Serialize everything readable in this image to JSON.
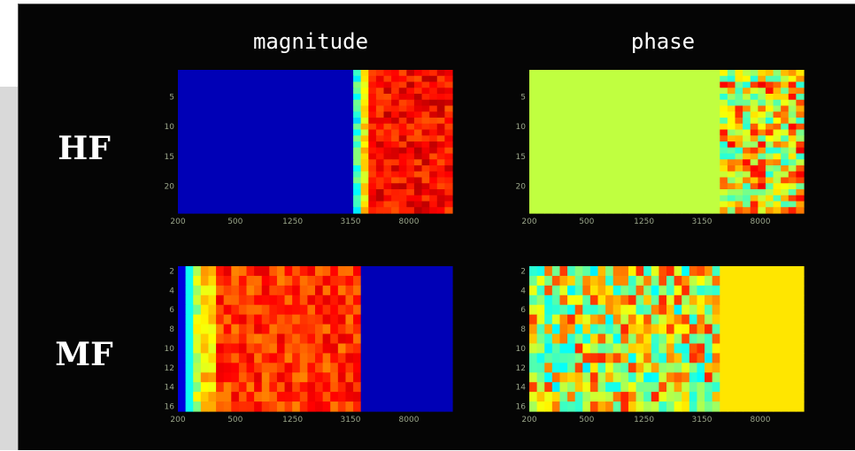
{
  "colors": {
    "background": "#050505",
    "colormap": [
      "#00008f",
      "#0000ff",
      "#00ffff",
      "#80ff80",
      "#ffff00",
      "#ff8000",
      "#ff0000",
      "#800000"
    ]
  },
  "figure": {
    "column_titles": [
      "magnitude",
      "phase"
    ],
    "row_labels": [
      "HF",
      "MF"
    ]
  },
  "chart_data": [
    {
      "type": "heatmap",
      "row": "HF",
      "column": "magnitude",
      "xlabel": "",
      "ylabel": "",
      "x_scale": "log",
      "xlim": [
        200,
        16000
      ],
      "ylim": [
        1,
        24
      ],
      "x_ticks": [
        "200",
        "500",
        "1250",
        "3150",
        "8000"
      ],
      "y_ticks": [
        "5",
        "10",
        "15",
        "20"
      ],
      "y_tick_values": [
        5,
        10,
        15,
        20
      ],
      "description_of_values": {
        "freq_breaks": [
          200,
          3400,
          3650,
          4000,
          16000
        ],
        "band_levels": [
          0.05,
          0.35,
          0.6,
          0.85
        ],
        "row_variation": "moderate"
      }
    },
    {
      "type": "heatmap",
      "row": "HF",
      "column": "phase",
      "xlabel": "",
      "ylabel": "",
      "x_scale": "log",
      "xlim": [
        200,
        16000
      ],
      "ylim": [
        1,
        24
      ],
      "x_ticks": [
        "200",
        "500",
        "1250",
        "3150",
        "8000"
      ],
      "y_ticks": [
        "5",
        "10",
        "15",
        "20"
      ],
      "y_tick_values": [
        5,
        10,
        15,
        20
      ],
      "description_of_values": {
        "freq_breaks": [
          200,
          4000,
          16000
        ],
        "band_levels": [
          0.5,
          0.6
        ],
        "row_variation": "high-in-upper-band"
      }
    },
    {
      "type": "heatmap",
      "row": "MF",
      "column": "magnitude",
      "xlabel": "",
      "ylabel": "",
      "x_scale": "log",
      "xlim": [
        200,
        16000
      ],
      "ylim": [
        2,
        16
      ],
      "x_ticks": [
        "200",
        "500",
        "1250",
        "3150",
        "8000"
      ],
      "y_ticks": [
        "2",
        "4",
        "6",
        "8",
        "10",
        "12",
        "14",
        "16"
      ],
      "y_tick_values": [
        2,
        4,
        6,
        8,
        10,
        12,
        14,
        16
      ],
      "description_of_values": {
        "freq_breaks": [
          200,
          230,
          260,
          300,
          360,
          3700,
          16000
        ],
        "band_levels": [
          0.1,
          0.3,
          0.5,
          0.62,
          0.8,
          0.05
        ],
        "row_variation": "moderate"
      }
    },
    {
      "type": "heatmap",
      "row": "MF",
      "column": "phase",
      "xlabel": "",
      "ylabel": "",
      "x_scale": "log",
      "xlim": [
        200,
        16000
      ],
      "ylim": [
        2,
        16
      ],
      "x_ticks": [
        "200",
        "500",
        "1250",
        "3150",
        "8000"
      ],
      "y_ticks": [
        "2",
        "4",
        "6",
        "8",
        "10",
        "12",
        "14",
        "16"
      ],
      "y_tick_values": [
        2,
        4,
        6,
        8,
        10,
        12,
        14,
        16
      ],
      "description_of_values": {
        "freq_breaks": [
          200,
          4200,
          16000
        ],
        "band_levels": [
          0.55,
          0.6
        ],
        "row_variation": "high-in-lower-band"
      }
    }
  ]
}
